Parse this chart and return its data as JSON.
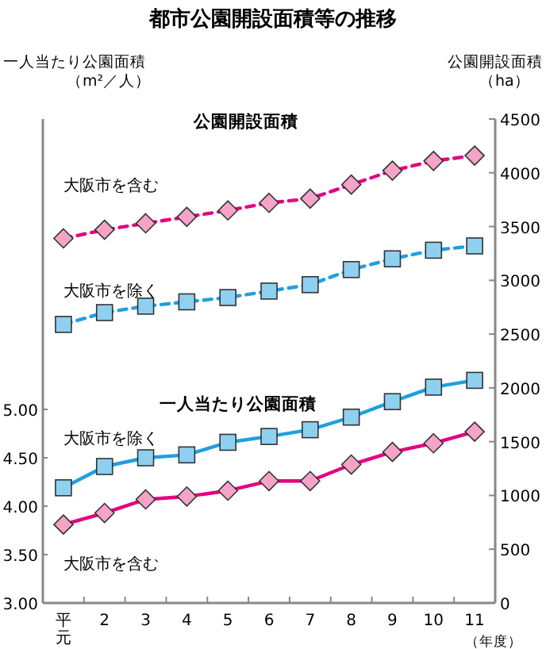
{
  "chart_data": {
    "type": "line",
    "title": "都市公園開設面積等の推移",
    "ylabel": "一人当たり公園面積（m²／人）",
    "y2label": "公園開設面積（ha）",
    "xlabel": "（年度）",
    "categories": [
      "平元",
      "2",
      "3",
      "4",
      "5",
      "6",
      "7",
      "8",
      "9",
      "10",
      "11"
    ],
    "ylim": [
      3,
      8
    ],
    "yticks": [
      {
        "value": 3,
        "label": "3.00"
      },
      {
        "value": 3.5,
        "label": "3.50"
      },
      {
        "value": 4,
        "label": "4.00"
      },
      {
        "value": 4.5,
        "label": "4.50"
      },
      {
        "value": 5,
        "label": "5.00"
      }
    ],
    "y2lim": [
      0,
      4500
    ],
    "y2ticks": [
      0,
      500,
      1000,
      1500,
      2000,
      2500,
      3000,
      3500,
      4000,
      4500
    ],
    "annotations": [
      "公園開設面積",
      "一人当たり公園面積"
    ],
    "legend": false,
    "grid": false,
    "series": [
      {
        "name": "大阪市を含む",
        "color": "#e4007f",
        "axis": "y2",
        "marker": "diamond",
        "line_style": "dashed",
        "values": [
          3390,
          3470,
          3530,
          3590,
          3650,
          3720,
          3760,
          3890,
          4020,
          4110,
          4160
        ]
      },
      {
        "name": "大阪市を除く",
        "color": "#1ea0e0",
        "axis": "y2",
        "marker": "square",
        "line_style": "dashed",
        "values": [
          2590,
          2700,
          2760,
          2800,
          2840,
          2900,
          2960,
          3100,
          3200,
          3280,
          3320
        ]
      },
      {
        "name": "大阪市を除く",
        "color": "#1ea0e0",
        "marker": "square",
        "line_style": "solid",
        "values": [
          4.19,
          4.41,
          4.5,
          4.53,
          4.66,
          4.72,
          4.79,
          4.92,
          5.08,
          5.23,
          5.3
        ]
      },
      {
        "name": "大阪市を含む",
        "color": "#e4007f",
        "marker": "diamond",
        "line_style": "solid",
        "values": [
          3.81,
          3.93,
          4.07,
          4.1,
          4.16,
          4.26,
          4.26,
          4.43,
          4.56,
          4.65,
          4.77
        ]
      }
    ]
  }
}
